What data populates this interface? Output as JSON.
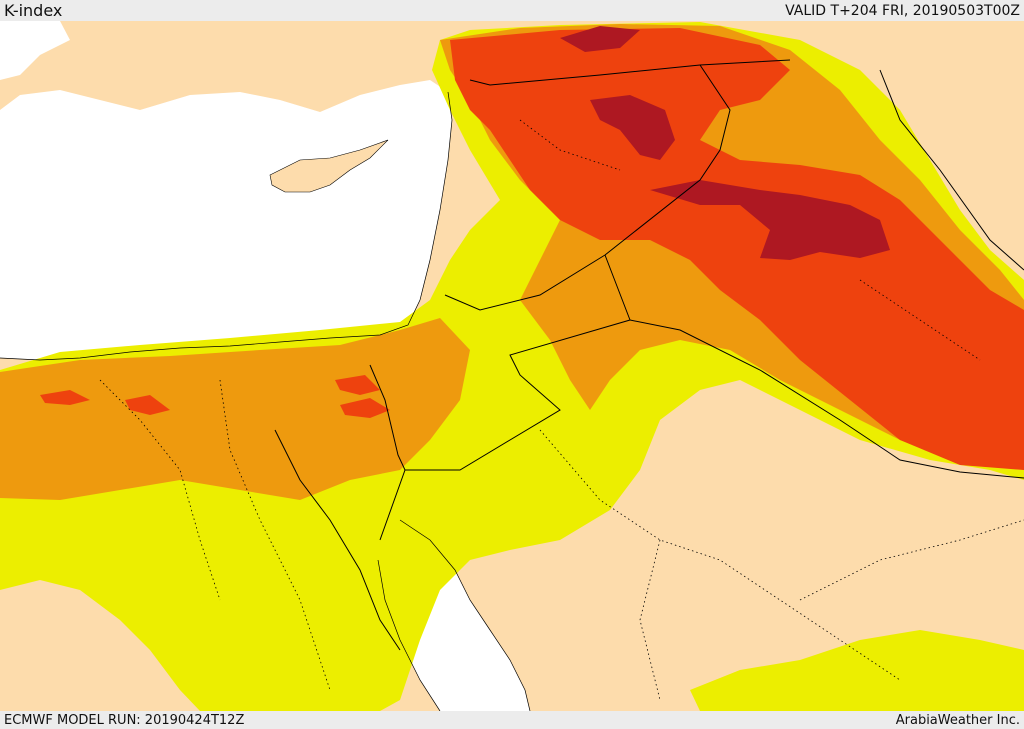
{
  "header": {
    "product": "K-index",
    "valid_time": "VALID T+204 FRI, 20190503T00Z"
  },
  "footer": {
    "model_run": "ECMWF MODEL RUN: 20190424T12Z",
    "credit": "ArabiaWeather Inc."
  },
  "palette": {
    "sea": "#ffffff",
    "land": "#fddcac",
    "k_low": "#ecee00",
    "k_mid": "#ee9a0e",
    "k_high": "#ee420e",
    "k_very_high": "#ae1822",
    "border": "#000000"
  }
}
